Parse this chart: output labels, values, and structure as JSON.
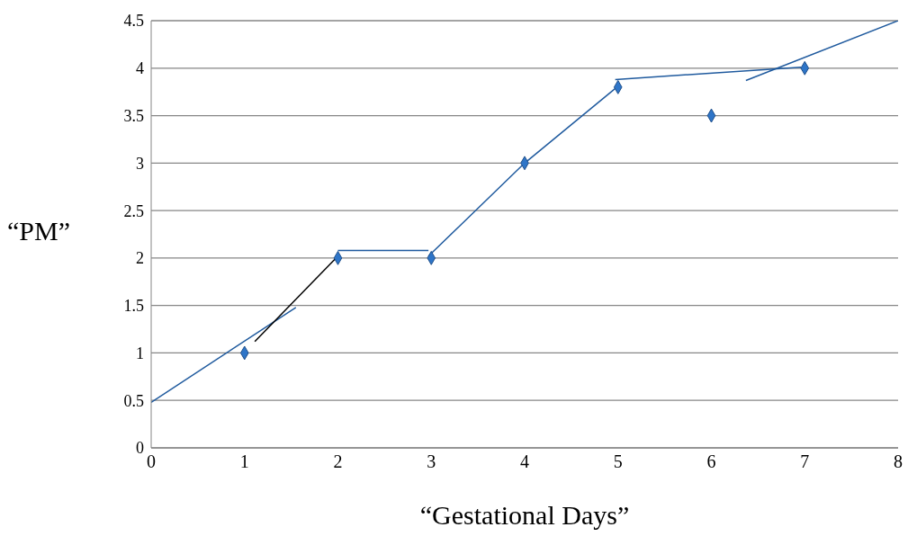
{
  "chart_data": {
    "type": "scatter",
    "xlabel": "“Gestational Days”",
    "ylabel": "“PM”",
    "xlim": [
      0,
      8
    ],
    "xticks": [
      0,
      1,
      2,
      3,
      4,
      5,
      6,
      7,
      8
    ],
    "ylim": [
      0,
      4.5
    ],
    "yticks": [
      0,
      0.5,
      1,
      1.5,
      2,
      2.5,
      3,
      3.5,
      4,
      4.5
    ],
    "grid": "y",
    "series": [
      {
        "marker": "diamond",
        "color": "#2e75c8",
        "x": [
          1,
          2,
          3,
          4,
          5,
          6,
          7
        ],
        "values": [
          1,
          2,
          2,
          3,
          3.8,
          3.5,
          4
        ]
      },
      {
        "type": "line",
        "marker": "none",
        "color": "#1f5a9e",
        "x": [
          0,
          1.55
        ],
        "values": [
          0.48,
          1.48
        ]
      },
      {
        "type": "line",
        "marker": "none",
        "color": "#000000",
        "x": [
          1.11,
          2
        ],
        "values": [
          1.12,
          2.02
        ]
      },
      {
        "type": "line",
        "marker": "none",
        "color": "#1f5a9e",
        "x": [
          2,
          2.97
        ],
        "values": [
          2.08,
          2.08
        ]
      },
      {
        "type": "line",
        "marker": "none",
        "color": "#1f5a9e",
        "x": [
          2.97,
          4,
          5
        ],
        "values": [
          2.02,
          3,
          3.81
        ]
      },
      {
        "type": "line",
        "marker": "none",
        "color": "#1f5a9e",
        "x": [
          4.97,
          6.96
        ],
        "values": [
          3.88,
          4.01
        ]
      },
      {
        "type": "line",
        "marker": "none",
        "color": "#1f5a9e",
        "x": [
          6.37,
          8
        ],
        "values": [
          3.87,
          4.5
        ]
      }
    ]
  }
}
